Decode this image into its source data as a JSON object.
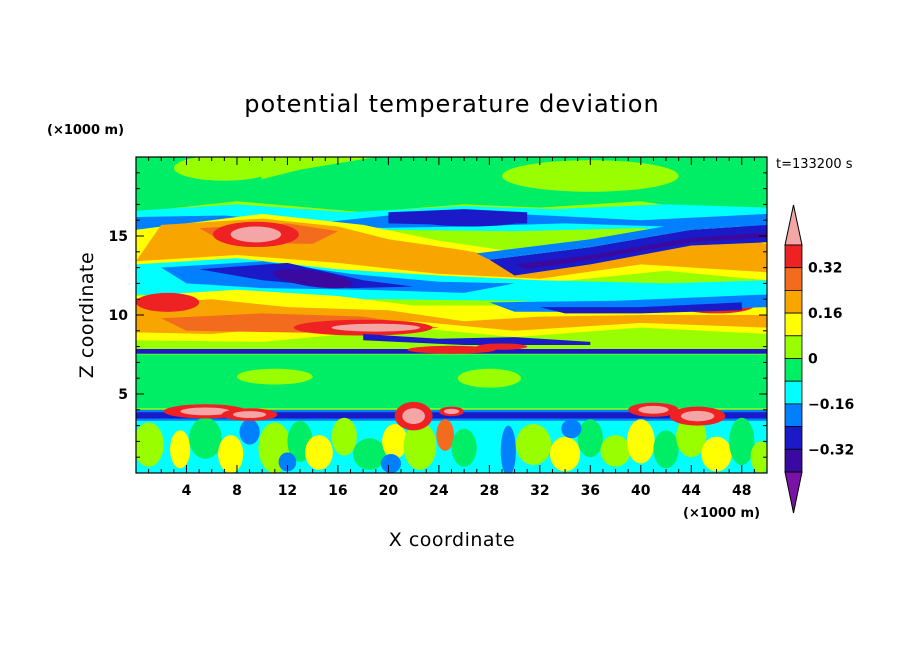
{
  "chart_data": {
    "type": "heatmap",
    "title": "potential temperature deviation",
    "xlabel": "X coordinate",
    "ylabel": "Z coordinate",
    "x_unit": "(×1000 m)",
    "z_unit": "(×1000 m)",
    "time_label": "t=133200 s",
    "xlim": [
      0,
      50
    ],
    "ylim": [
      0,
      20
    ],
    "x_ticks": [
      "4",
      "8",
      "12",
      "16",
      "20",
      "24",
      "28",
      "32",
      "36",
      "40",
      "44",
      "48"
    ],
    "y_ticks": [
      "5",
      "10",
      "15"
    ],
    "colorbar": {
      "levels": [
        -0.4,
        -0.32,
        -0.24,
        -0.16,
        -0.08,
        0,
        0.08,
        0.16,
        0.24,
        0.32,
        0.4
      ],
      "labels": [
        "0.32",
        "0.16",
        "0",
        "−0.16",
        "−0.32"
      ],
      "colors_top_to_bottom": [
        "#f4a6a6",
        "#ee2222",
        "#f36b1c",
        "#f8a500",
        "#ffff00",
        "#99ff00",
        "#00ee66",
        "#00ffff",
        "#0080ff",
        "#1a1ac8",
        "#3a0aa0",
        "#7a12a8"
      ]
    },
    "palette": {
      "neutral": "#00ee66",
      "weak_positive": "#99ff00",
      "yellow": "#ffff00",
      "orange": "#f8a500",
      "dark_orange": "#f36b1c",
      "red": "#ee2222",
      "pink": "#f4a6a6",
      "cyan": "#00ffff",
      "blue": "#0080ff",
      "dark_blue": "#1a1ac8",
      "indigo": "#3a0aa0"
    }
  }
}
